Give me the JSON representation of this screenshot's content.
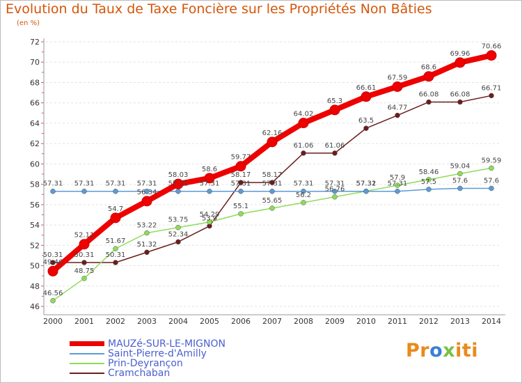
{
  "chart_data": {
    "type": "line",
    "title": "Evolution du Taux de Taxe Foncière sur les Propriétés Non Bâties",
    "subtitle": "(en %)",
    "x": [
      "2000",
      "2001",
      "2002",
      "2003",
      "2004",
      "2005",
      "2006",
      "2007",
      "2008",
      "2009",
      "2010",
      "2011",
      "2012",
      "2013",
      "2014"
    ],
    "ylim": [
      46,
      72
    ],
    "yticks": [
      "46",
      "48",
      "50",
      "52",
      "54",
      "56",
      "58",
      "60",
      "62",
      "64",
      "66",
      "68",
      "70",
      "72"
    ],
    "grid": "horizontal dashed",
    "legend_position": "bottom-left",
    "series": [
      {
        "name": "MAUZé-SUR-LE-MIGNON",
        "color": "#ee0000",
        "values": [
          49.46,
          52.11,
          54.7,
          56.34,
          58.03,
          58.6,
          59.77,
          62.16,
          64.02,
          65.3,
          66.61,
          67.59,
          68.6,
          69.96,
          70.66
        ],
        "labels": [
          "49.46",
          "52.11",
          "54.7",
          "56.34",
          "58.03",
          "58.6",
          "59.77",
          "62.16",
          "64.02",
          "65.3",
          "66.61",
          "67.59",
          "68.6",
          "69.96",
          "70.66"
        ]
      },
      {
        "name": "Saint-Pierre-d'Amilly",
        "color": "#5b9bd5",
        "values": [
          57.31,
          57.31,
          57.31,
          57.31,
          57.31,
          57.31,
          57.31,
          57.31,
          57.31,
          57.31,
          57.31,
          57.31,
          57.5,
          57.6,
          57.6
        ],
        "labels": [
          "57.31",
          "57.31",
          "57.31",
          "57.31",
          "57.31",
          "57.31",
          "57.31",
          "57.31",
          "57.31",
          "57.31",
          "57.31",
          "57.31",
          "57.5",
          "57.6",
          "57.6"
        ]
      },
      {
        "name": "Prin-Deyrançon",
        "color": "#8edc5a",
        "values": [
          46.56,
          48.75,
          51.67,
          53.22,
          53.75,
          54.29,
          55.1,
          55.65,
          56.2,
          56.76,
          57.32,
          57.9,
          58.46,
          59.04,
          59.59
        ],
        "labels": [
          "46.56",
          "48.75",
          "51.67",
          "53.22",
          "53.75",
          "54.29",
          "55.1",
          "55.65",
          "56.2",
          "56.76",
          "57.32",
          "57.9",
          "58.46",
          "59.04",
          "59.59"
        ]
      },
      {
        "name": "Cramchaban",
        "color": "#6b1d1d",
        "values": [
          50.31,
          50.31,
          50.31,
          51.32,
          52.34,
          53.9,
          58.17,
          58.17,
          61.06,
          61.06,
          63.5,
          64.77,
          66.08,
          66.08,
          66.71
        ],
        "labels": [
          "50.31",
          "50.31",
          "50.31",
          "51.32",
          "52.34",
          "53.9",
          "58.17",
          "58.17",
          "61.06",
          "61.06",
          "63.5",
          "64.77",
          "66.08",
          "66.08",
          "66.71"
        ]
      }
    ]
  },
  "logo": {
    "letters": [
      "P",
      "r",
      "o",
      "x",
      "i",
      "t",
      "i"
    ],
    "colors": [
      "#e98a1c",
      "#e98a1c",
      "#3a7fd6",
      "#7ac143",
      "#e98a1c",
      "#e98a1c",
      "#e98a1c"
    ]
  }
}
